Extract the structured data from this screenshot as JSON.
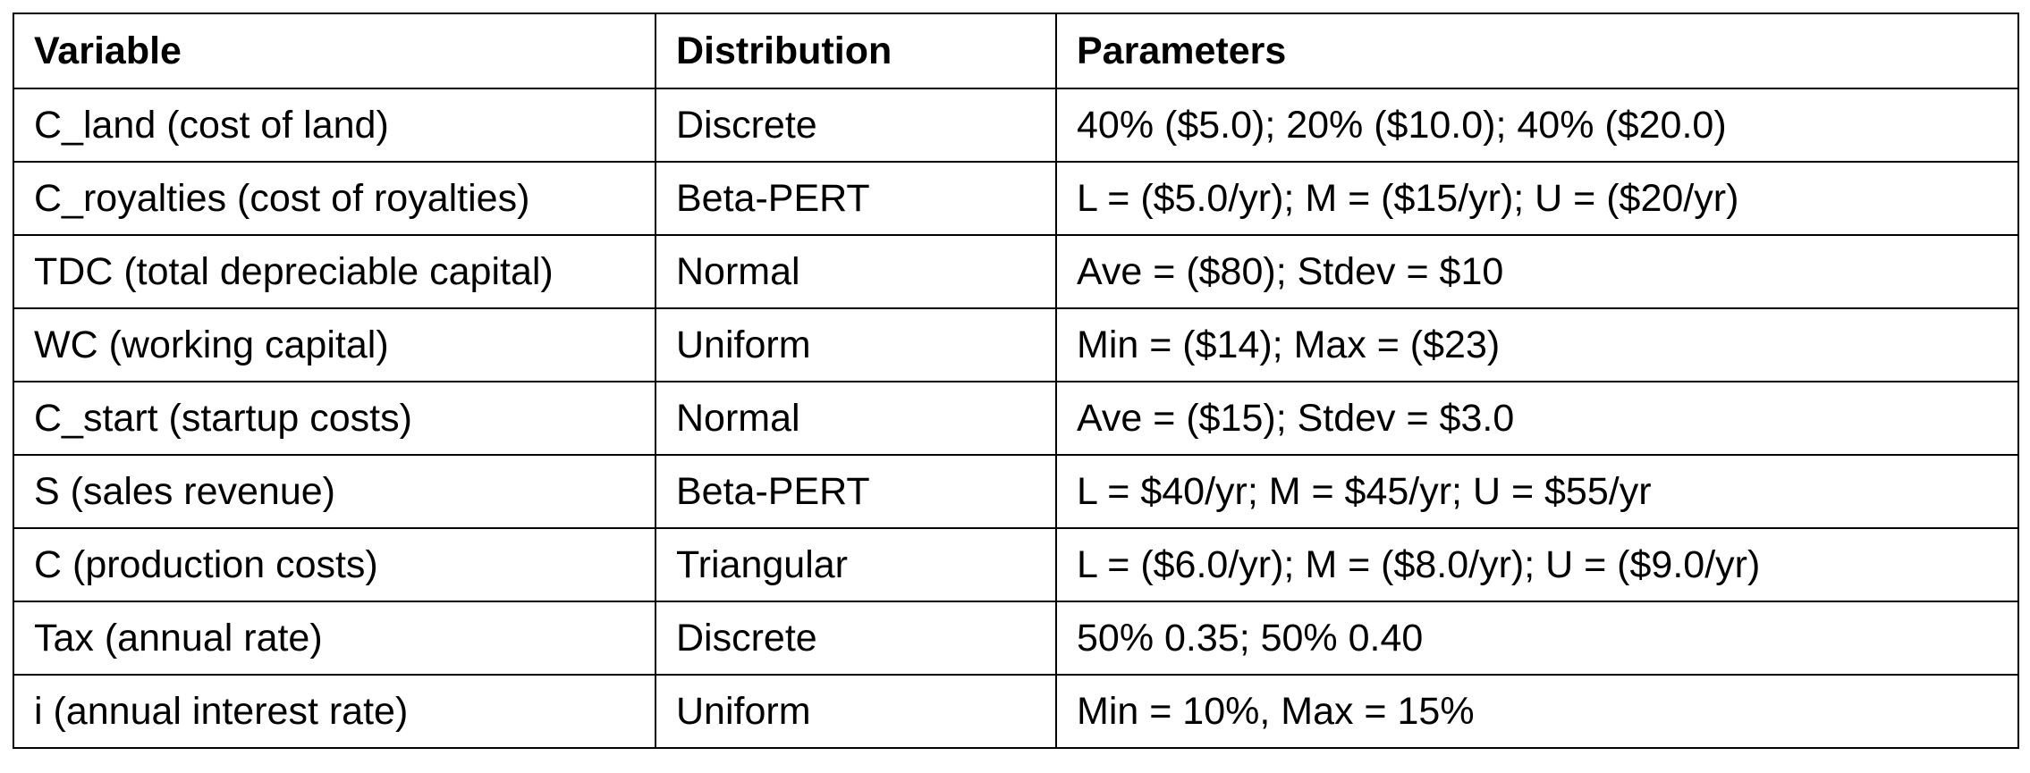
{
  "table": {
    "headers": [
      "Variable",
      "Distribution",
      "Parameters"
    ],
    "rows": [
      [
        "C_land (cost of land)",
        "Discrete",
        "40% ($5.0); 20% ($10.0); 40% ($20.0)"
      ],
      [
        "C_royalties (cost of royalties)",
        "Beta-PERT",
        "L = ($5.0/yr); M = ($15/yr); U = ($20/yr)"
      ],
      [
        "TDC (total depreciable capital)",
        "Normal",
        "Ave = ($80); Stdev = $10"
      ],
      [
        "WC (working capital)",
        "Uniform",
        "Min = ($14); Max = ($23)"
      ],
      [
        "C_start (startup costs)",
        "Normal",
        "Ave = ($15); Stdev = $3.0"
      ],
      [
        "S (sales revenue)",
        "Beta-PERT",
        "L = $40/yr; M = $45/yr; U = $55/yr"
      ],
      [
        "C (production costs)",
        "Triangular",
        "L = ($6.0/yr); M = ($8.0/yr); U = ($9.0/yr)"
      ],
      [
        "Tax (annual rate)",
        "Discrete",
        "50% 0.35; 50% 0.40"
      ],
      [
        "i (annual interest rate)",
        "Uniform",
        "Min = 10%, Max = 15%"
      ]
    ]
  }
}
